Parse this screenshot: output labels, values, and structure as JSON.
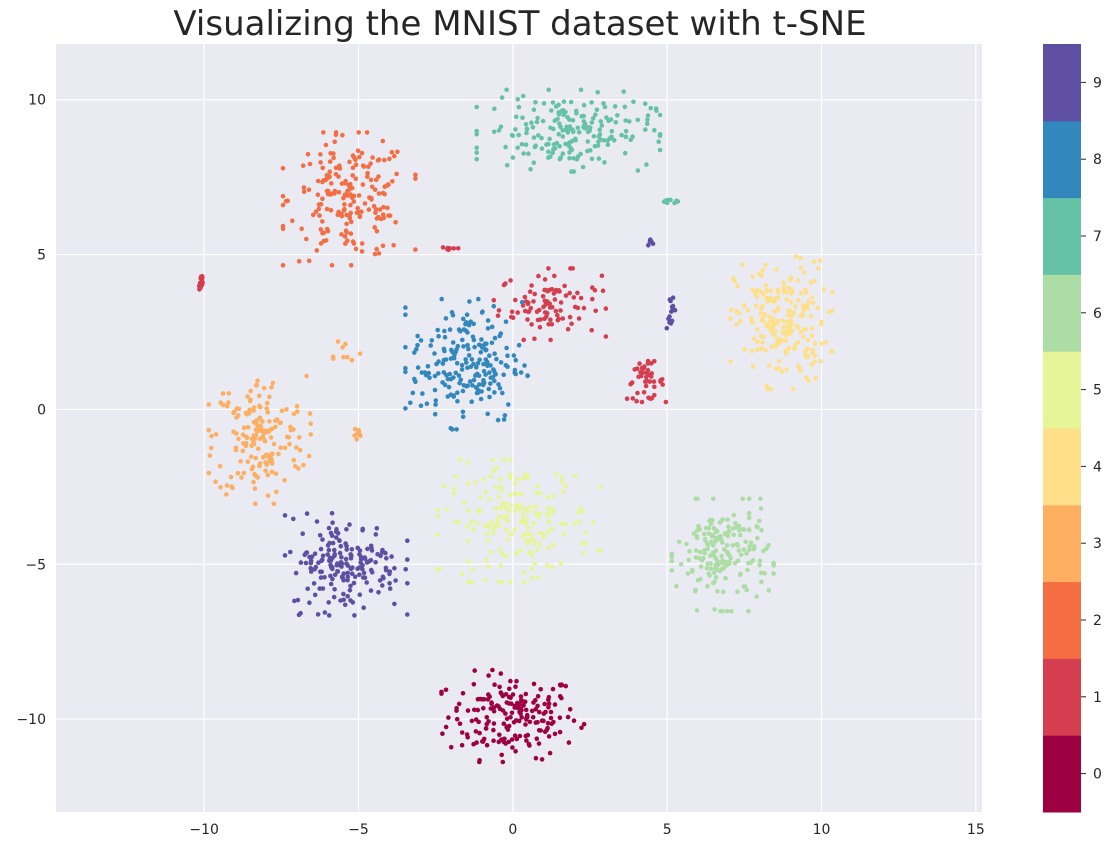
{
  "chart_data": {
    "type": "scatter",
    "title": "Visualizing the MNIST dataset with t-SNE",
    "xlabel": "",
    "ylabel": "",
    "xlim": [
      -14.8,
      15.2
    ],
    "ylim": [
      -13.0,
      11.8
    ],
    "xticks": [
      -10,
      -5,
      0,
      5,
      10,
      15
    ],
    "xtick_labels": [
      "−10",
      "−5",
      "0",
      "5",
      "10",
      "15"
    ],
    "yticks": [
      -10,
      -5,
      0,
      5,
      10
    ],
    "ytick_labels": [
      "−10",
      "−5",
      "0",
      "5",
      "10"
    ],
    "grid": true,
    "background_color": "#eaeaf2",
    "colormap": "Spectral",
    "colorbar": {
      "placement": "right",
      "ticks": [
        "0",
        "1",
        "2",
        "3",
        "4",
        "5",
        "6",
        "7",
        "8",
        "9"
      ],
      "colors": [
        "#9e0142",
        "#d53e4f",
        "#f46d43",
        "#fdae61",
        "#fee08b",
        "#e6f598",
        "#abdda4",
        "#66c2a5",
        "#3288bd",
        "#5e4fa2"
      ]
    },
    "clusters": [
      {
        "digit": "0",
        "color": "#9e0142",
        "center": [
          0.0,
          -9.9
        ],
        "spread": [
          1.4,
          0.9
        ],
        "count": 190
      },
      {
        "digit": "1",
        "color": "#d53e4f",
        "center": [
          1.2,
          3.4
        ],
        "spread": [
          1.1,
          0.7
        ],
        "count": 95
      },
      {
        "digit": "1",
        "color": "#d53e4f",
        "center": [
          4.3,
          0.9
        ],
        "spread": [
          0.4,
          0.4
        ],
        "count": 45
      },
      {
        "digit": "1",
        "color": "#d53e4f",
        "center": [
          -10.1,
          4.1
        ],
        "spread": [
          0.05,
          0.25
        ],
        "count": 14
      },
      {
        "digit": "1",
        "color": "#d53e4f",
        "center": [
          -2.0,
          5.2
        ],
        "spread": [
          0.25,
          0.05
        ],
        "count": 8
      },
      {
        "digit": "2",
        "color": "#f46d43",
        "center": [
          -5.3,
          6.8
        ],
        "spread": [
          1.3,
          1.3
        ],
        "count": 200
      },
      {
        "digit": "3",
        "color": "#fdae61",
        "center": [
          -8.2,
          -0.9
        ],
        "spread": [
          1.0,
          1.3
        ],
        "count": 170
      },
      {
        "digit": "3",
        "color": "#fdae61",
        "center": [
          -5.5,
          1.9
        ],
        "spread": [
          0.4,
          0.3
        ],
        "count": 10
      },
      {
        "digit": "3",
        "color": "#fdae61",
        "center": [
          -5.1,
          -0.8
        ],
        "spread": [
          0.15,
          0.2
        ],
        "count": 8
      },
      {
        "digit": "4",
        "color": "#fee08b",
        "center": [
          8.7,
          2.8
        ],
        "spread": [
          1.0,
          1.3
        ],
        "count": 210
      },
      {
        "digit": "5",
        "color": "#e6f598",
        "center": [
          0.2,
          -3.6
        ],
        "spread": [
          1.6,
          1.2
        ],
        "count": 190
      },
      {
        "digit": "6",
        "color": "#abdda4",
        "center": [
          6.8,
          -4.7
        ],
        "spread": [
          1.0,
          1.1
        ],
        "count": 190
      },
      {
        "digit": "7",
        "color": "#66c2a5",
        "center": [
          1.8,
          9.0
        ],
        "spread": [
          1.8,
          0.8
        ],
        "count": 200
      },
      {
        "digit": "7",
        "color": "#66c2a5",
        "center": [
          5.0,
          6.7
        ],
        "spread": [
          0.25,
          0.05
        ],
        "count": 8
      },
      {
        "digit": "8",
        "color": "#3288bd",
        "center": [
          -1.5,
          1.5
        ],
        "spread": [
          1.2,
          1.3
        ],
        "count": 210
      },
      {
        "digit": "9",
        "color": "#5e4fa2",
        "center": [
          -5.4,
          -5.0
        ],
        "spread": [
          1.2,
          1.0
        ],
        "count": 190
      },
      {
        "digit": "9",
        "color": "#5e4fa2",
        "center": [
          5.1,
          3.2
        ],
        "spread": [
          0.1,
          0.35
        ],
        "count": 14
      },
      {
        "digit": "9",
        "color": "#5e4fa2",
        "center": [
          4.5,
          5.5
        ],
        "spread": [
          0.08,
          0.15
        ],
        "count": 5
      }
    ]
  }
}
